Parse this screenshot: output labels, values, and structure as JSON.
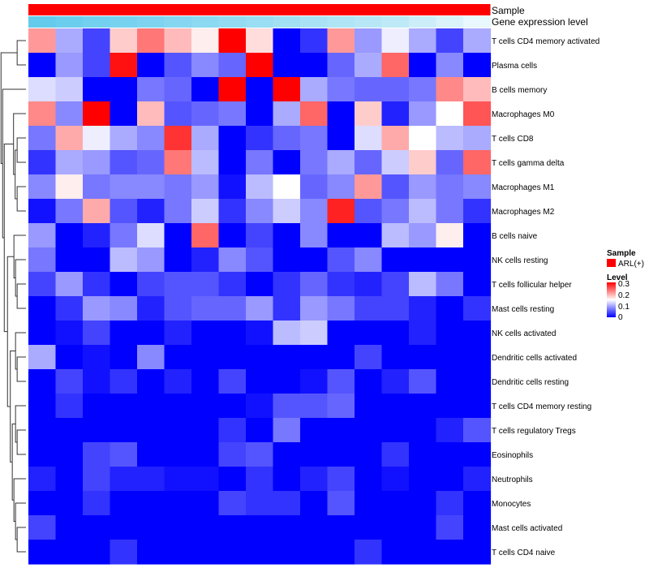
{
  "chart_data": {
    "type": "heatmap",
    "title": "",
    "annotation_tracks": [
      {
        "name": "Sample"
      },
      {
        "name": "Gene expression level"
      }
    ],
    "legend": {
      "sample_title": "Sample",
      "sample_label": "ARL(+)",
      "sample_color": "#ff0000",
      "level_title": "Level",
      "level_ticks": [
        "0.3",
        "0.2",
        "0.1",
        "0"
      ],
      "position": "right"
    },
    "color_scale": {
      "min": 0,
      "mid": 0.15,
      "max": 0.3,
      "low": "#0000ff",
      "midColor": "#ffffff",
      "high": "#ff0000"
    },
    "rows": [
      "T cells CD4 memory activated",
      "Plasma cells",
      "B cells memory",
      "Macrophages M0",
      "T cells CD8",
      "T cells gamma delta",
      "Macrophages M1",
      "Macrophages M2",
      "B cells naive",
      "NK cells resting",
      "T cells follicular helper",
      "Mast cells resting",
      "NK cells activated",
      "Dendritic cells activated",
      "Dendritic cells resting",
      "T cells CD4 memory resting",
      "T cells regulatory  Tregs",
      "Eosinophils",
      "Neutrophils",
      "Monocytes",
      "Mast cells activated",
      "T cells CD4 naive"
    ],
    "n_columns": 17,
    "values": [
      [
        0.21,
        0.1,
        0.04,
        0.18,
        0.23,
        0.19,
        0.16,
        0.3,
        0.17,
        0.0,
        0.03,
        0.21,
        0.09,
        0.14,
        0.1,
        0.04,
        0.1
      ],
      [
        0.0,
        0.09,
        0.04,
        0.29,
        0.0,
        0.05,
        0.08,
        0.06,
        0.3,
        0.0,
        0.0,
        0.06,
        0.1,
        0.24,
        0.0,
        0.08,
        0.0
      ],
      [
        0.13,
        0.12,
        0.0,
        0.0,
        0.07,
        0.06,
        0.0,
        0.3,
        0.0,
        0.3,
        0.1,
        0.07,
        0.06,
        0.06,
        0.07,
        0.22,
        0.19
      ],
      [
        0.22,
        0.08,
        0.3,
        0.0,
        0.19,
        0.05,
        0.06,
        0.07,
        0.0,
        0.1,
        0.24,
        0.0,
        0.18,
        0.02,
        0.09,
        0.15,
        0.25
      ],
      [
        0.07,
        0.2,
        0.14,
        0.1,
        0.08,
        0.27,
        0.1,
        0.0,
        0.03,
        0.06,
        0.07,
        0.0,
        0.13,
        0.2,
        0.15,
        0.11,
        0.1
      ],
      [
        0.03,
        0.1,
        0.09,
        0.05,
        0.06,
        0.23,
        0.11,
        0.0,
        0.07,
        0.0,
        0.07,
        0.1,
        0.06,
        0.12,
        0.18,
        0.06,
        0.24
      ],
      [
        0.08,
        0.16,
        0.07,
        0.08,
        0.08,
        0.07,
        0.09,
        0.01,
        0.11,
        0.15,
        0.06,
        0.08,
        0.21,
        0.05,
        0.09,
        0.07,
        0.08
      ],
      [
        0.01,
        0.07,
        0.2,
        0.05,
        0.02,
        0.07,
        0.12,
        0.03,
        0.08,
        0.12,
        0.08,
        0.28,
        0.05,
        0.07,
        0.11,
        0.07,
        0.03
      ],
      [
        0.09,
        0.0,
        0.02,
        0.07,
        0.13,
        0.0,
        0.24,
        0.0,
        0.04,
        0.0,
        0.08,
        0.0,
        0.0,
        0.11,
        0.09,
        0.16,
        0.0
      ],
      [
        0.07,
        0.0,
        0.0,
        0.11,
        0.09,
        0.0,
        0.02,
        0.08,
        0.05,
        0.0,
        0.0,
        0.05,
        0.08,
        0.0,
        0.0,
        0.0,
        0.0
      ],
      [
        0.04,
        0.09,
        0.03,
        0.0,
        0.04,
        0.05,
        0.05,
        0.03,
        0.0,
        0.03,
        0.06,
        0.03,
        0.02,
        0.04,
        0.11,
        0.07,
        0.0
      ],
      [
        0.0,
        0.03,
        0.09,
        0.08,
        0.02,
        0.05,
        0.06,
        0.06,
        0.09,
        0.03,
        0.09,
        0.07,
        0.04,
        0.04,
        0.02,
        0.0,
        0.03
      ],
      [
        0.0,
        0.01,
        0.04,
        0.0,
        0.0,
        0.02,
        0.0,
        0.0,
        0.01,
        0.11,
        0.12,
        0.0,
        0.0,
        0.0,
        0.02,
        0.0,
        0.0
      ],
      [
        0.1,
        0.0,
        0.01,
        0.0,
        0.08,
        0.0,
        0.0,
        0.0,
        0.0,
        0.0,
        0.0,
        0.0,
        0.04,
        0.0,
        0.0,
        0.0,
        0.0
      ],
      [
        0.0,
        0.04,
        0.01,
        0.03,
        0.0,
        0.02,
        0.0,
        0.04,
        0.0,
        0.0,
        0.01,
        0.05,
        0.0,
        0.02,
        0.05,
        0.0,
        0.0
      ],
      [
        0.0,
        0.03,
        0.0,
        0.0,
        0.0,
        0.0,
        0.0,
        0.0,
        0.01,
        0.05,
        0.05,
        0.06,
        0.0,
        0.0,
        0.0,
        0.0,
        0.0
      ],
      [
        0.0,
        0.0,
        0.0,
        0.0,
        0.0,
        0.0,
        0.0,
        0.03,
        0.0,
        0.07,
        0.0,
        0.0,
        0.0,
        0.0,
        0.0,
        0.02,
        0.05
      ],
      [
        0.0,
        0.0,
        0.04,
        0.05,
        0.0,
        0.0,
        0.0,
        0.04,
        0.05,
        0.0,
        0.0,
        0.0,
        0.0,
        0.03,
        0.0,
        0.0,
        0.0
      ],
      [
        0.02,
        0.0,
        0.04,
        0.02,
        0.02,
        0.01,
        0.01,
        0.0,
        0.03,
        0.0,
        0.02,
        0.04,
        0.0,
        0.01,
        0.0,
        0.0,
        0.02
      ],
      [
        0.0,
        0.0,
        0.03,
        0.0,
        0.0,
        0.0,
        0.0,
        0.04,
        0.03,
        0.03,
        0.0,
        0.05,
        0.0,
        0.0,
        0.0,
        0.03,
        0.0
      ],
      [
        0.04,
        0.0,
        0.0,
        0.0,
        0.0,
        0.0,
        0.0,
        0.0,
        0.0,
        0.0,
        0.0,
        0.0,
        0.0,
        0.0,
        0.0,
        0.04,
        0.0
      ],
      [
        0.0,
        0.0,
        0.0,
        0.03,
        0.0,
        0.0,
        0.0,
        0.0,
        0.0,
        0.0,
        0.0,
        0.0,
        0.03,
        0.0,
        0.0,
        0.0,
        0.0
      ]
    ],
    "gene_expression_track": [
      0.93,
      0.88,
      0.83,
      0.8,
      0.75,
      0.7,
      0.65,
      0.6,
      0.55,
      0.5,
      0.45,
      0.4,
      0.35,
      0.3,
      0.2,
      0.1,
      0.0
    ],
    "dendrogram_merges": [
      [
        [
          20
        ],
        [
          21
        ]
      ],
      [
        [
          19
        ],
        [
          20,
          21
        ]
      ],
      [
        [
          18
        ],
        [
          19,
          20,
          21
        ]
      ],
      [
        [
          16
        ],
        [
          17
        ]
      ],
      [
        [
          15
        ],
        [
          16,
          17
        ]
      ],
      [
        [
          13
        ],
        [
          14
        ]
      ],
      [
        [
          15,
          16,
          17
        ],
        [
          18,
          19,
          20,
          21
        ]
      ],
      [
        [
          12
        ],
        [
          13,
          14
        ]
      ],
      [
        [
          12,
          13,
          14
        ],
        [
          15,
          16,
          17,
          18,
          19,
          20,
          21
        ]
      ],
      [
        [
          10
        ],
        [
          11
        ]
      ],
      [
        [
          9
        ],
        [
          10,
          11
        ]
      ],
      [
        [
          8
        ],
        [
          9,
          10,
          11
        ]
      ],
      [
        [
          6
        ],
        [
          7
        ]
      ],
      [
        [
          4
        ],
        [
          5
        ]
      ],
      [
        [
          4,
          5
        ],
        [
          6,
          7
        ]
      ],
      [
        [
          3
        ],
        [
          4,
          5,
          6,
          7
        ]
      ],
      [
        [
          8,
          9,
          10,
          11
        ],
        [
          12,
          13,
          14,
          15,
          16,
          17,
          18,
          19,
          20,
          21
        ]
      ],
      [
        [
          3,
          4,
          5,
          6,
          7
        ],
        [
          8,
          9,
          10,
          11,
          12,
          13,
          14,
          15,
          16,
          17,
          18,
          19,
          20,
          21
        ]
      ],
      [
        [
          2
        ],
        [
          3,
          4,
          5,
          6,
          7,
          8,
          9,
          10,
          11,
          12,
          13,
          14,
          15,
          16,
          17,
          18,
          19,
          20,
          21
        ]
      ],
      [
        [
          0
        ],
        [
          1
        ]
      ],
      [
        [
          0,
          1
        ],
        [
          2,
          3,
          4,
          5,
          6,
          7,
          8,
          9,
          10,
          11,
          12,
          13,
          14,
          15,
          16,
          17,
          18,
          19,
          20,
          21
        ]
      ]
    ]
  }
}
